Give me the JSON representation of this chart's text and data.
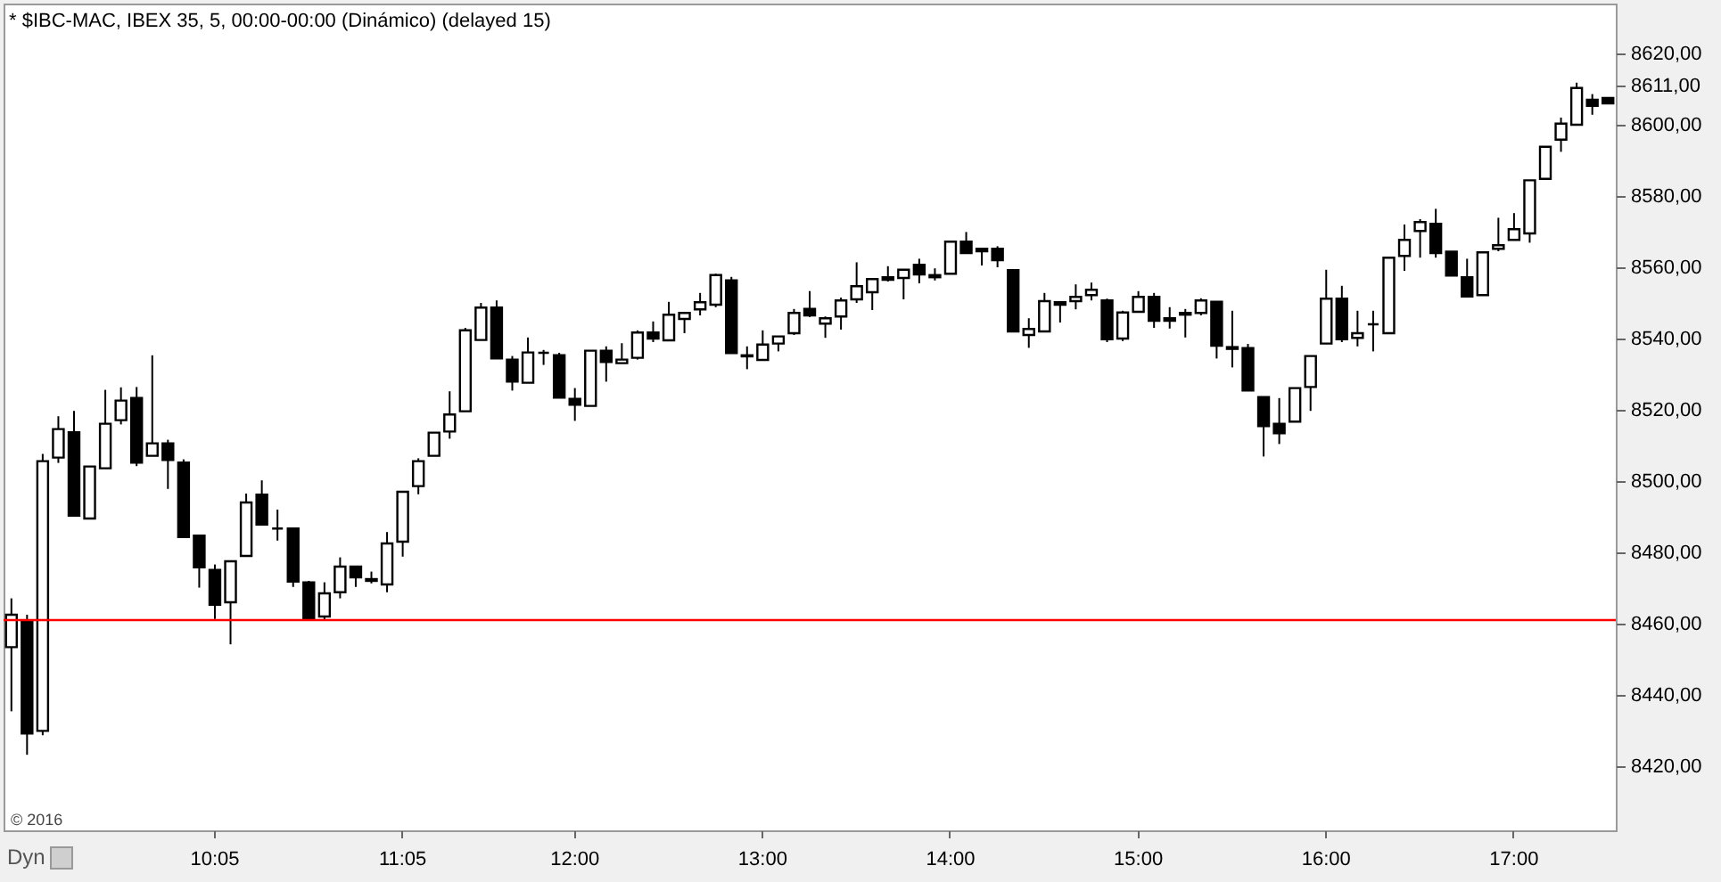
{
  "chart_data": {
    "type": "candlestick",
    "title": "* $IBC-MAC, IBEX 35, 5, 00:00-00:00 (Dinámico) (delayed 15)",
    "annotations": [
      "© 2016",
      "Dyn"
    ],
    "categories": [
      null,
      null,
      null,
      null,
      null,
      null,
      null,
      null,
      null,
      null,
      null,
      null,
      null,
      "10:05",
      null,
      null,
      null,
      null,
      null,
      null,
      null,
      null,
      null,
      null,
      null,
      "11:05",
      null,
      null,
      null,
      null,
      null,
      null,
      null,
      null,
      null,
      null,
      "12:00",
      null,
      null,
      null,
      null,
      null,
      null,
      null,
      null,
      null,
      null,
      null,
      "13:00",
      null,
      null,
      null,
      null,
      null,
      null,
      null,
      null,
      null,
      null,
      null,
      "14:00",
      null,
      null,
      null,
      null,
      null,
      null,
      null,
      null,
      null,
      null,
      null,
      "15:00",
      null,
      null,
      null,
      null,
      null,
      null,
      null,
      null,
      null,
      null,
      null,
      "16:00",
      null,
      null,
      null,
      null,
      null,
      null,
      null,
      null,
      null,
      null,
      null,
      "17:00",
      null,
      null,
      null,
      null,
      null,
      null
    ],
    "ohlc": [
      [
        8453.4,
        8467.1,
        8435.4,
        8462.5
      ],
      [
        8460.5,
        8462.5,
        8423.2,
        8429.2
      ],
      [
        8429.9,
        8507.6,
        8428.7,
        8505.6
      ],
      [
        8506.6,
        8518.2,
        8505.1,
        8514.6
      ],
      [
        8513.7,
        8519.7,
        8490.3,
        8490.3
      ],
      [
        8489.5,
        8504.1,
        8489.5,
        8504.1
      ],
      [
        8503.6,
        8525.6,
        8503.6,
        8516.1
      ],
      [
        8517.1,
        8526.3,
        8515.9,
        8522.6
      ],
      [
        8523.3,
        8526.4,
        8504.2,
        8505.2
      ],
      [
        8507.1,
        8535.3,
        8507.1,
        8510.6
      ],
      [
        8510.6,
        8511.6,
        8497.8,
        8505.9
      ],
      [
        8505.2,
        8506.1,
        8484.3,
        8484.3
      ],
      [
        8484.7,
        8484.7,
        8470.1,
        8475.8
      ],
      [
        8475.1,
        8476.6,
        8461.3,
        8465.3
      ],
      [
        8466,
        8477.5,
        8454.2,
        8477.5
      ],
      [
        8479,
        8496.5,
        8479,
        8494
      ],
      [
        8496.2,
        8500.2,
        8487.8,
        8487.8
      ],
      [
        8486.7,
        8492,
        8483.3,
        8486.7
      ],
      [
        8486.7,
        8486.7,
        8470.3,
        8471.8
      ],
      [
        8471.6,
        8472,
        8461.3,
        8461.3
      ],
      [
        8462,
        8471.6,
        8461,
        8468.5
      ],
      [
        8468.8,
        8478.6,
        8467.1,
        8476
      ],
      [
        8476,
        8476,
        8470.3,
        8473
      ],
      [
        8472.5,
        8474.6,
        8471.3,
        8472
      ],
      [
        8471,
        8485.7,
        8468.8,
        8482.5
      ],
      [
        8483,
        8497,
        8478.8,
        8497
      ],
      [
        8498.6,
        8506.4,
        8496.3,
        8505.6
      ],
      [
        8507.1,
        8513.6,
        8507.1,
        8513.6
      ],
      [
        8513.9,
        8525.2,
        8511.9,
        8518.7
      ],
      [
        8519.6,
        8543,
        8519.6,
        8542.3
      ],
      [
        8539.6,
        8550,
        8539.6,
        8548.7
      ],
      [
        8548.7,
        8550.7,
        8534.4,
        8534.4
      ],
      [
        8534.1,
        8535.1,
        8525.4,
        8527.9
      ],
      [
        8527.6,
        8540.3,
        8527.6,
        8536.1
      ],
      [
        8536,
        8536.8,
        8532.6,
        8536
      ],
      [
        8535.3,
        8536,
        8523.4,
        8523.4
      ],
      [
        8523.1,
        8526.1,
        8516.9,
        8521.4
      ],
      [
        8521.1,
        8536.6,
        8521.1,
        8536.6
      ],
      [
        8536.6,
        8537.8,
        8527.9,
        8533.4
      ],
      [
        8533.1,
        8538.7,
        8533.1,
        8534.1
      ],
      [
        8534.6,
        8542.3,
        8534.1,
        8541.7
      ],
      [
        8541.7,
        8544.8,
        8539,
        8540
      ],
      [
        8539.5,
        8550.3,
        8539.5,
        8546.7
      ],
      [
        8545.5,
        8547.2,
        8541.5,
        8547.2
      ],
      [
        8548.2,
        8552.8,
        8546.5,
        8550.2
      ],
      [
        8549.5,
        8558.2,
        8548.8,
        8557.8
      ],
      [
        8556.3,
        8557.3,
        8535.9,
        8535.9
      ],
      [
        8535.3,
        8537.8,
        8531.4,
        8535
      ],
      [
        8534,
        8542.3,
        8534,
        8538.3
      ],
      [
        8538.6,
        8540.6,
        8536.4,
        8540.6
      ],
      [
        8541.5,
        8548.3,
        8541,
        8547.2
      ],
      [
        8548.3,
        8553.3,
        8546,
        8546.5
      ],
      [
        8544.2,
        8546.2,
        8540.2,
        8545.7
      ],
      [
        8546.2,
        8551.5,
        8542.5,
        8550.7
      ],
      [
        8551,
        8561.4,
        8550,
        8554.7
      ],
      [
        8553,
        8556.7,
        8548,
        8556.7
      ],
      [
        8557.2,
        8560.3,
        8556,
        8556.5
      ],
      [
        8557,
        8559.3,
        8551,
        8559.3
      ],
      [
        8560.7,
        8562.4,
        8555.5,
        8558
      ],
      [
        8557.8,
        8559.7,
        8556.3,
        8557.2
      ],
      [
        8558.2,
        8567.2,
        8558.2,
        8567.2
      ],
      [
        8567.2,
        8569.9,
        8564,
        8564
      ],
      [
        8565.2,
        8565.2,
        8560.5,
        8564.5
      ],
      [
        8565.2,
        8565.9,
        8560,
        8562
      ],
      [
        8559.2,
        8559.2,
        8542,
        8542
      ],
      [
        8541,
        8545.7,
        8537.4,
        8542.7
      ],
      [
        8542,
        8552.8,
        8542,
        8550.5
      ],
      [
        8550.2,
        8550.2,
        8544.5,
        8549.5
      ],
      [
        8550.5,
        8555.2,
        8548.2,
        8551.7
      ],
      [
        8552.2,
        8555.7,
        8550.7,
        8553.7
      ],
      [
        8550.7,
        8551.2,
        8539,
        8539.8
      ],
      [
        8540,
        8547.8,
        8539.3,
        8547.3
      ],
      [
        8547.5,
        8553.3,
        8547.5,
        8551.7
      ],
      [
        8551.7,
        8552.8,
        8543,
        8545
      ],
      [
        8545.7,
        8548.8,
        8542.8,
        8545
      ],
      [
        8546.7,
        8548.3,
        8540.3,
        8547.2
      ],
      [
        8547.2,
        8551.3,
        8546.5,
        8550.7
      ],
      [
        8550.3,
        8550.3,
        8534.4,
        8538
      ],
      [
        8537.6,
        8547.8,
        8531.9,
        8537.1
      ],
      [
        8537.3,
        8538.5,
        8525.4,
        8525.4
      ],
      [
        8523.6,
        8523.6,
        8506.9,
        8515.4
      ],
      [
        8516.1,
        8523.3,
        8510.4,
        8513.4
      ],
      [
        8516.7,
        8526.1,
        8516.7,
        8526.1
      ],
      [
        8526.4,
        8535.1,
        8519.7,
        8535.1
      ],
      [
        8538.6,
        8559.3,
        8538.6,
        8551.2
      ],
      [
        8551.2,
        8554.8,
        8539,
        8539.8
      ],
      [
        8540.2,
        8547.8,
        8537.8,
        8541.5
      ],
      [
        8544,
        8547.8,
        8536.4,
        8544
      ],
      [
        8541.5,
        8562.7,
        8541.5,
        8562.7
      ],
      [
        8563.2,
        8572,
        8559,
        8567.7
      ],
      [
        8570.2,
        8573.5,
        8562.7,
        8572.7
      ],
      [
        8572.2,
        8576.4,
        8562.7,
        8564
      ],
      [
        8564.4,
        8564.4,
        8557.7,
        8557.7
      ],
      [
        8557.2,
        8562.4,
        8551.5,
        8551.8
      ],
      [
        8552.2,
        8564.2,
        8552.2,
        8564.2
      ],
      [
        8565.2,
        8573.9,
        8564.5,
        8566.2
      ],
      [
        8567.7,
        8575.2,
        8567.7,
        8570.7
      ],
      [
        8569.5,
        8584.4,
        8566.9,
        8584.4
      ],
      [
        8584.8,
        8593.8,
        8584.8,
        8593.8
      ],
      [
        8595.8,
        8602,
        8592.4,
        8600.3
      ],
      [
        8600,
        8611.8,
        8600,
        8610.3
      ],
      [
        8607,
        8608.6,
        8602.8,
        8605.3
      ],
      [
        8607.5,
        8607.5,
        8606,
        8606
      ]
    ],
    "ylim": [
      8402,
      8634
    ],
    "yticks": [
      {
        "value": 8420,
        "label": "8420,00"
      },
      {
        "value": 8440,
        "label": "8440,00"
      },
      {
        "value": 8460,
        "label": "8460,00"
      },
      {
        "value": 8480,
        "label": "8480,00"
      },
      {
        "value": 8500,
        "label": "8500,00"
      },
      {
        "value": 8520,
        "label": "8520,00"
      },
      {
        "value": 8540,
        "label": "8540,00"
      },
      {
        "value": 8560,
        "label": "8560,00"
      },
      {
        "value": 8580,
        "label": "8580,00"
      },
      {
        "value": 8600,
        "label": "8600,00"
      },
      {
        "value": 8611,
        "label": "8611,00"
      },
      {
        "value": 8620,
        "label": "8620,00"
      }
    ],
    "ref_lines": [
      {
        "axis": "y",
        "value": 8461,
        "color": "#ff0000"
      }
    ]
  }
}
